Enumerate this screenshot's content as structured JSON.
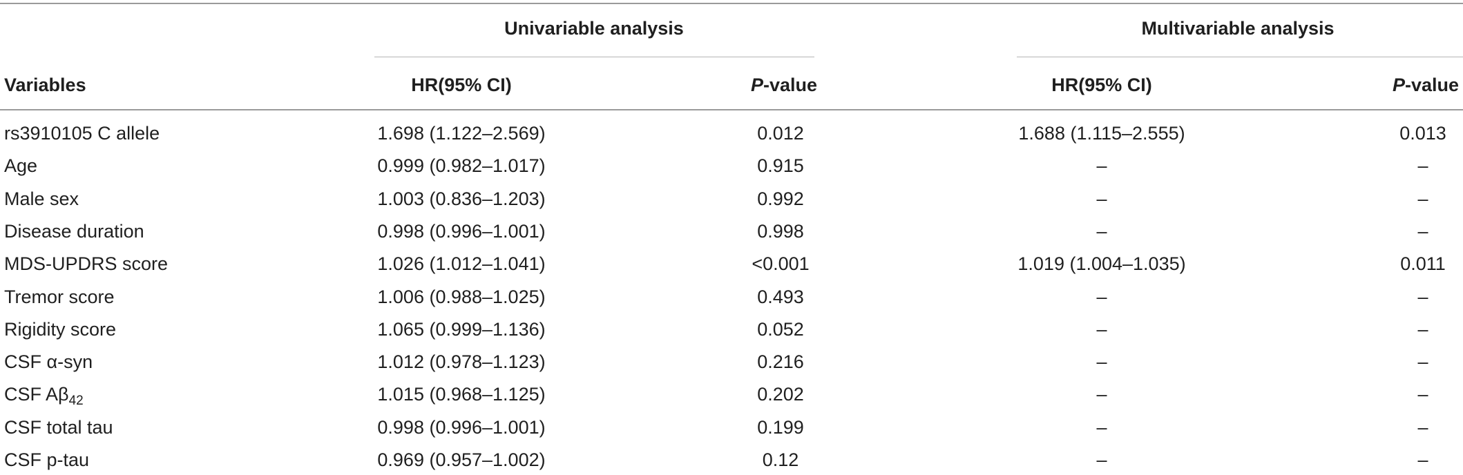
{
  "header": {
    "group1": "Univariable analysis",
    "group2": "Multivariable analysis",
    "variables": "Variables",
    "hr_ci": "HR(95% CI)",
    "p_italic": "P",
    "p_rest": "-value"
  },
  "rows": [
    {
      "name": "rs3910105 C allele",
      "name_sub": "",
      "uni_hr": "1.698 (1.122–2.569)",
      "uni_p": "0.012",
      "multi_hr": "1.688 (1.115–2.555)",
      "multi_p": "0.013"
    },
    {
      "name": "Age",
      "name_sub": "",
      "uni_hr": "0.999 (0.982–1.017)",
      "uni_p": "0.915",
      "multi_hr": "–",
      "multi_p": "–"
    },
    {
      "name": "Male sex",
      "name_sub": "",
      "uni_hr": "1.003 (0.836–1.203)",
      "uni_p": "0.992",
      "multi_hr": "–",
      "multi_p": "–"
    },
    {
      "name": "Disease duration",
      "name_sub": "",
      "uni_hr": "0.998 (0.996–1.001)",
      "uni_p": "0.998",
      "multi_hr": "–",
      "multi_p": "–"
    },
    {
      "name": "MDS-UPDRS score",
      "name_sub": "",
      "uni_hr": "1.026 (1.012–1.041)",
      "uni_p": "<0.001",
      "multi_hr": "1.019 (1.004–1.035)",
      "multi_p": "0.011"
    },
    {
      "name": "Tremor score",
      "name_sub": "",
      "uni_hr": "1.006 (0.988–1.025)",
      "uni_p": "0.493",
      "multi_hr": "–",
      "multi_p": "–"
    },
    {
      "name": "Rigidity score",
      "name_sub": "",
      "uni_hr": "1.065 (0.999–1.136)",
      "uni_p": "0.052",
      "multi_hr": "–",
      "multi_p": "–"
    },
    {
      "name": "CSF α-syn",
      "name_sub": "",
      "uni_hr": "1.012 (0.978–1.123)",
      "uni_p": "0.216",
      "multi_hr": "–",
      "multi_p": "–"
    },
    {
      "name": "CSF Aβ",
      "name_sub": "42",
      "uni_hr": "1.015 (0.968–1.125)",
      "uni_p": "0.202",
      "multi_hr": "–",
      "multi_p": "–"
    },
    {
      "name": "CSF total tau",
      "name_sub": "",
      "uni_hr": "0.998 (0.996–1.001)",
      "uni_p": "0.199",
      "multi_hr": "–",
      "multi_p": "–"
    },
    {
      "name": "CSF p-tau",
      "name_sub": "",
      "uni_hr": "0.969 (0.957–1.002)",
      "uni_p": "0.12",
      "multi_hr": "–",
      "multi_p": "–"
    }
  ]
}
